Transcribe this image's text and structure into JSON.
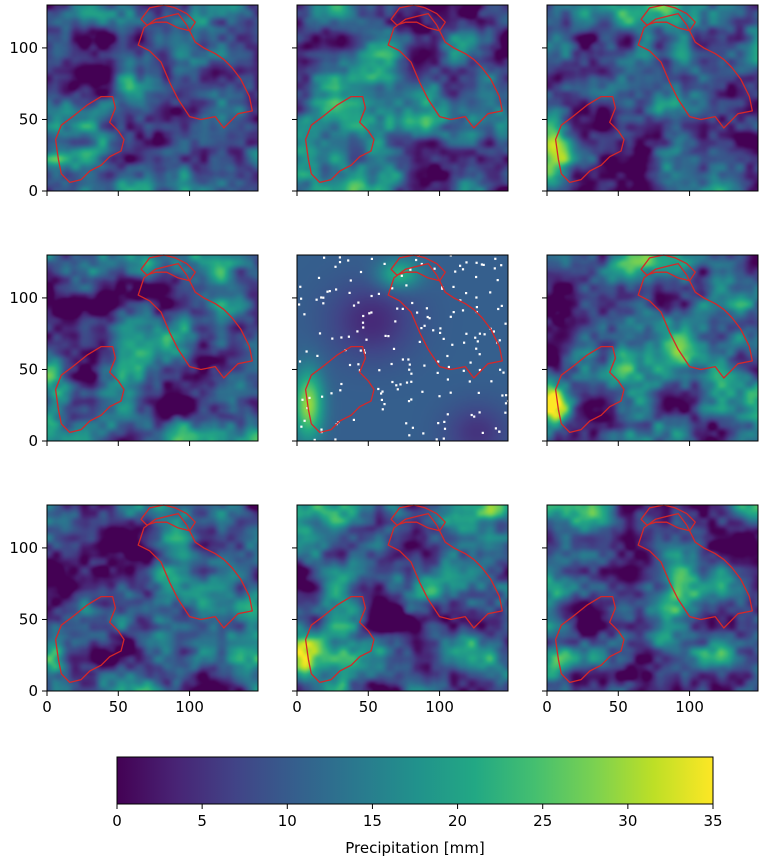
{
  "chart_data": {
    "type": "heatmap",
    "layout": "3x3 grid of precipitation field maps sharing one colorbar",
    "colormap": "viridis",
    "panels": [
      {
        "id": "r1c1",
        "kind": "stochastic field",
        "xlim": [
          0,
          148
        ],
        "ylim": [
          0,
          130
        ]
      },
      {
        "id": "r1c2",
        "kind": "stochastic field",
        "xlim": [
          0,
          148
        ],
        "ylim": [
          0,
          130
        ]
      },
      {
        "id": "r1c3",
        "kind": "stochastic field",
        "xlim": [
          0,
          148
        ],
        "ylim": [
          0,
          130
        ]
      },
      {
        "id": "r2c1",
        "kind": "stochastic field",
        "xlim": [
          0,
          148
        ],
        "ylim": [
          0,
          130
        ]
      },
      {
        "id": "r2c2",
        "kind": "interpolated field with station points (white)",
        "xlim": [
          0,
          148
        ],
        "ylim": [
          0,
          130
        ]
      },
      {
        "id": "r2c3",
        "kind": "stochastic field",
        "xlim": [
          0,
          148
        ],
        "ylim": [
          0,
          130
        ]
      },
      {
        "id": "r3c1",
        "kind": "stochastic field",
        "xlim": [
          0,
          148
        ],
        "ylim": [
          0,
          130
        ]
      },
      {
        "id": "r3c2",
        "kind": "stochastic field",
        "xlim": [
          0,
          148
        ],
        "ylim": [
          0,
          130
        ]
      },
      {
        "id": "r3c3",
        "kind": "stochastic field",
        "xlim": [
          0,
          148
        ],
        "ylim": [
          0,
          130
        ]
      }
    ],
    "x_ticks": [
      0,
      50,
      100
    ],
    "y_ticks": [
      0,
      50,
      100
    ],
    "x_tick_labels": [
      "0",
      "50",
      "100"
    ],
    "y_tick_labels": [
      "0",
      "50",
      "100"
    ],
    "colorbar": {
      "label": "Precipitation [mm]",
      "range": [
        0,
        35
      ],
      "ticks": [
        0,
        5,
        10,
        15,
        20,
        25,
        30,
        35
      ],
      "tick_labels": [
        "0",
        "5",
        "10",
        "15",
        "20",
        "25",
        "30",
        "35"
      ]
    },
    "overlay_color": "#d62728",
    "station_point_color": "#ffffff",
    "catchments": [
      {
        "name": "",
        "outline": [
          [
            16,
            6
          ],
          [
            10,
            12
          ],
          [
            8,
            22
          ],
          [
            6,
            36
          ],
          [
            10,
            46
          ],
          [
            18,
            52
          ],
          [
            28,
            60
          ],
          [
            38,
            66
          ],
          [
            46,
            66
          ],
          [
            48,
            58
          ],
          [
            44,
            48
          ],
          [
            50,
            42
          ],
          [
            54,
            36
          ],
          [
            52,
            28
          ],
          [
            44,
            24
          ],
          [
            38,
            18
          ],
          [
            30,
            14
          ],
          [
            24,
            8
          ]
        ]
      },
      {
        "name": "",
        "outline": [
          [
            66,
            108
          ],
          [
            68,
            114
          ],
          [
            76,
            120
          ],
          [
            84,
            122
          ],
          [
            92,
            124
          ],
          [
            98,
            116
          ],
          [
            104,
            104
          ],
          [
            110,
            100
          ],
          [
            118,
            96
          ],
          [
            124,
            92
          ],
          [
            130,
            86
          ],
          [
            136,
            78
          ],
          [
            142,
            66
          ],
          [
            144,
            56
          ],
          [
            134,
            54
          ],
          [
            128,
            48
          ],
          [
            124,
            44
          ],
          [
            118,
            52
          ],
          [
            108,
            50
          ],
          [
            100,
            52
          ],
          [
            92,
            64
          ],
          [
            86,
            76
          ],
          [
            80,
            90
          ],
          [
            72,
            98
          ],
          [
            64,
            102
          ]
        ]
      },
      {
        "name": "",
        "outline": [
          [
            66,
            120
          ],
          [
            72,
            128
          ],
          [
            82,
            130
          ],
          [
            90,
            128
          ],
          [
            98,
            124
          ],
          [
            104,
            118
          ],
          [
            100,
            112
          ],
          [
            92,
            114
          ],
          [
            84,
            118
          ],
          [
            76,
            118
          ],
          [
            70,
            116
          ]
        ]
      }
    ],
    "title": "",
    "xlabel": "",
    "ylabel": ""
  }
}
